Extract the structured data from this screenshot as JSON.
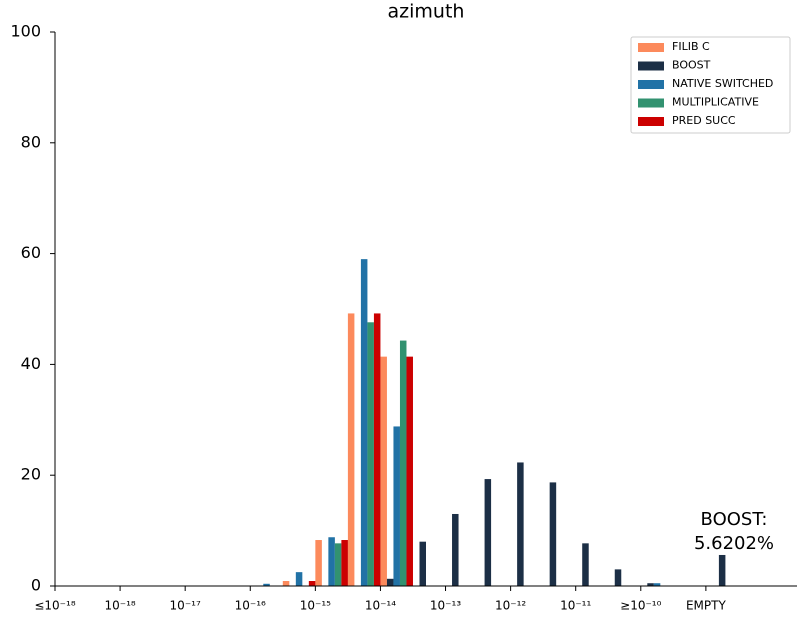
{
  "chart_data": {
    "type": "bar",
    "title": "azimuth",
    "x": [
      -16,
      -15.5,
      -15,
      -14.5,
      -14,
      -13.5,
      -13,
      -12.5,
      -12,
      -11.5,
      -11,
      -10.5,
      -10,
      -8.9
    ],
    "bar_width": 0.1,
    "series": [
      {
        "name": "FILIB C",
        "color": "#fc8a5c",
        "values": [
          0,
          0.9,
          8.3,
          49.2,
          41.4,
          0,
          0,
          0,
          0,
          0,
          0,
          0,
          0,
          0
        ]
      },
      {
        "name": "BOOST",
        "color": "#1c2f46",
        "values": [
          0,
          0,
          0,
          0,
          1.3,
          8,
          13,
          19.3,
          22.3,
          18.7,
          7.7,
          3,
          0.5,
          5.6
        ]
      },
      {
        "name": "NATIVE SWITCHED",
        "color": "#2172a6",
        "values": [
          0.4,
          2.5,
          8.8,
          59,
          28.8,
          0,
          0,
          0,
          0,
          0,
          0,
          0,
          0.5,
          0
        ]
      },
      {
        "name": "MULTIPLICATIVE",
        "color": "#329270",
        "values": [
          0,
          0,
          7.7,
          47.6,
          44.3,
          0,
          0,
          0,
          0,
          0,
          0,
          0,
          0,
          0
        ]
      },
      {
        "name": "PRED SUCC",
        "color": "#cc0000",
        "values": [
          0,
          0.9,
          8.3,
          49.2,
          41.4,
          0,
          0,
          0,
          0,
          0,
          0,
          0,
          0,
          0
        ]
      }
    ],
    "xlim": [
      -19,
      -7.6
    ],
    "xticks": [
      {
        "value": -19,
        "label": "≤10⁻¹⁸"
      },
      {
        "value": -18,
        "label": "10⁻¹⁸"
      },
      {
        "value": -17,
        "label": "10⁻¹⁷"
      },
      {
        "value": -16,
        "label": "10⁻¹⁶"
      },
      {
        "value": -15,
        "label": "10⁻¹⁵"
      },
      {
        "value": -14,
        "label": "10⁻¹⁴"
      },
      {
        "value": -13,
        "label": "10⁻¹³"
      },
      {
        "value": -12,
        "label": "10⁻¹²"
      },
      {
        "value": -11,
        "label": "10⁻¹¹"
      },
      {
        "value": -10,
        "label": "≥10⁻¹⁰"
      },
      {
        "value": -9,
        "label": "EMPTY"
      }
    ],
    "ylim": [
      0,
      100
    ],
    "yticks": [
      0,
      20,
      40,
      60,
      80,
      100
    ],
    "annotation": [
      "BOOST:",
      "5.6202%"
    ],
    "legend": "upper right"
  }
}
